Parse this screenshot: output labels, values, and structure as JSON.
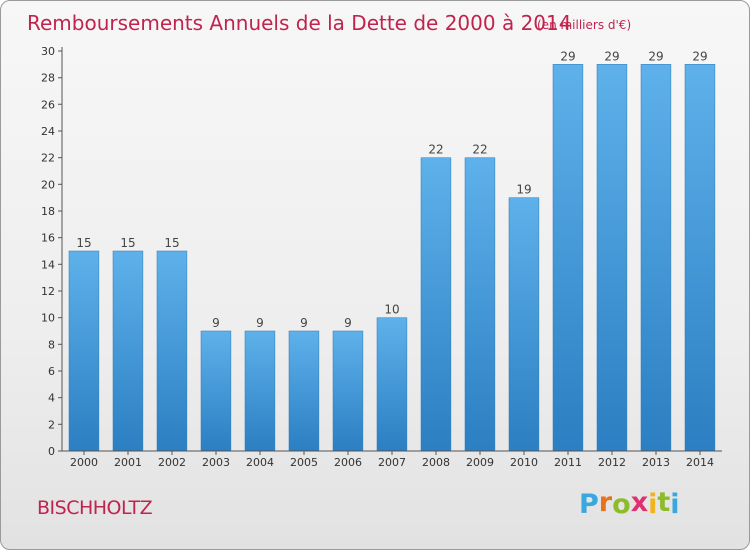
{
  "header": {
    "title": "Remboursements Annuels de la Dette de 2000 à 2014",
    "unit": "(en milliers d'€)"
  },
  "footer": {
    "city": "BISCHHOLTZ",
    "logo": {
      "letters": [
        "P",
        "r",
        "o",
        "x",
        "i",
        "t",
        "i"
      ],
      "colors": [
        "#3aa7de",
        "#e8731b",
        "#8dbb2b",
        "#e0306f",
        "#f0b41d",
        "#8dbb2b",
        "#3aa7de"
      ]
    }
  },
  "chart_data": {
    "type": "bar",
    "categories": [
      "2000",
      "2001",
      "2002",
      "2003",
      "2004",
      "2005",
      "2006",
      "2007",
      "2008",
      "2009",
      "2010",
      "2011",
      "2012",
      "2013",
      "2014"
    ],
    "values": [
      15,
      15,
      15,
      9,
      9,
      9,
      9,
      10,
      22,
      22,
      19,
      29,
      29,
      29,
      29
    ],
    "ylim": [
      0,
      30
    ],
    "yticks": [
      0,
      2,
      4,
      6,
      8,
      10,
      12,
      14,
      16,
      18,
      20,
      22,
      24,
      26,
      28,
      30
    ],
    "grid": false,
    "bar_color": "#3b95d8"
  }
}
